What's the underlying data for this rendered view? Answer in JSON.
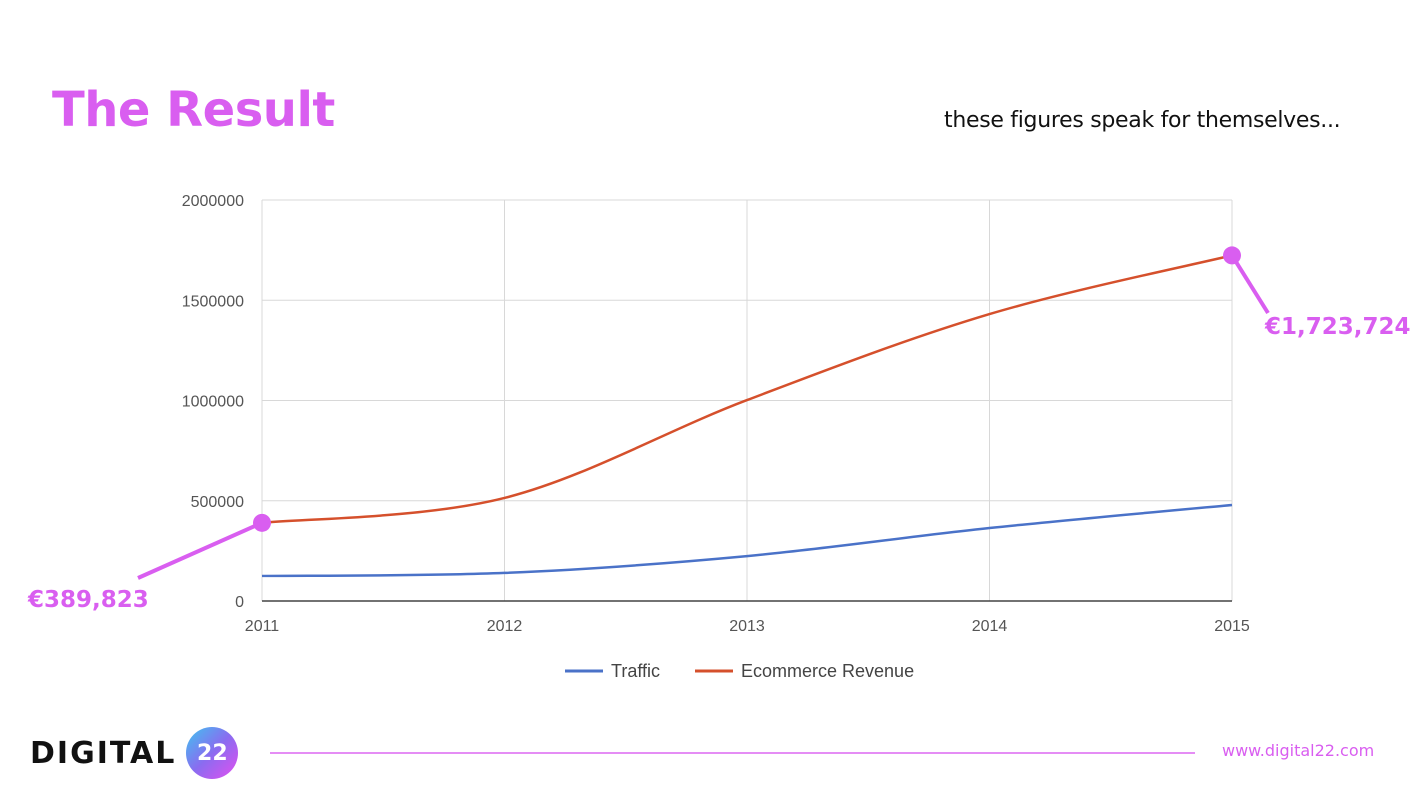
{
  "title": "The Result",
  "subtitle": "these figures speak for themselves...",
  "colors": {
    "accent": "#d95ef0",
    "traffic": "#4a72c8",
    "revenue": "#d5502c"
  },
  "chart_data": {
    "type": "line",
    "x": [
      "2011",
      "2012",
      "2013",
      "2014",
      "2015"
    ],
    "series": [
      {
        "name": "Traffic",
        "values": [
          125000,
          140000,
          224000,
          364000,
          479000
        ]
      },
      {
        "name": "Ecommerce Revenue",
        "values": [
          389823,
          514000,
          1002000,
          1431000,
          1723724
        ]
      }
    ],
    "yticks": [
      "0",
      "500000",
      "1000000",
      "1500000",
      "2000000"
    ],
    "ylim": [
      0,
      2000000
    ],
    "grid": true,
    "legend_position": "bottom",
    "annotations": [
      {
        "label": "€389,823",
        "x": "2011",
        "value": 389823
      },
      {
        "label": "€1,723,724",
        "x": "2015",
        "value": 1723724
      }
    ]
  },
  "footer": {
    "logo_text": "DIGITAL",
    "logo_badge": "22",
    "url": "www.digital22.com"
  }
}
